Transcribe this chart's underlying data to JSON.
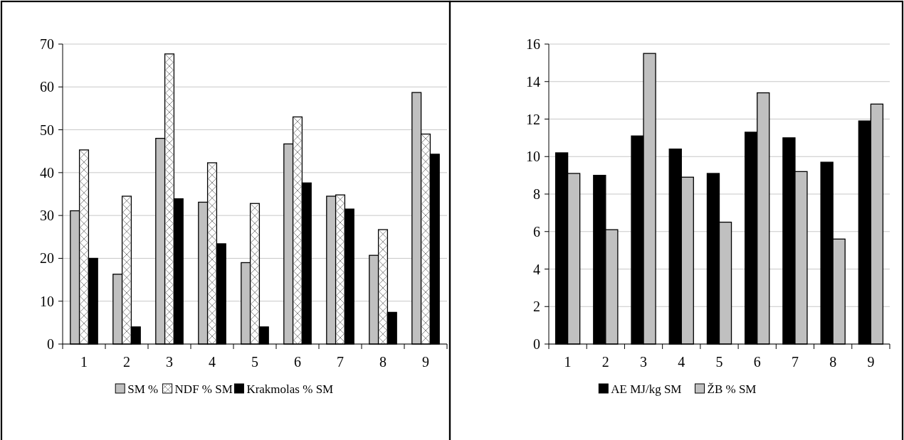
{
  "chart_data": [
    {
      "type": "bar",
      "categories": [
        "1",
        "2",
        "3",
        "4",
        "5",
        "6",
        "7",
        "8",
        "9"
      ],
      "series": [
        {
          "name": "SM %",
          "color": "#c0c0c0",
          "values": [
            31.1,
            16.3,
            48,
            33.1,
            19,
            46.7,
            34.5,
            20.7,
            58.7
          ]
        },
        {
          "name": "NDF % SM",
          "color": "#ffffff",
          "values": [
            45.3,
            34.5,
            67.7,
            42.3,
            32.8,
            53,
            34.8,
            26.7,
            49
          ]
        },
        {
          "name": "Krakmolas % SM",
          "color": "#000000",
          "values": [
            20,
            4,
            33.9,
            23.4,
            4,
            37.6,
            31.5,
            7.4,
            44.3
          ]
        }
      ],
      "ylim": [
        0,
        70
      ],
      "yticks": [
        0,
        10,
        20,
        30,
        40,
        50,
        60,
        70
      ],
      "grid": "y",
      "legend": "bottom"
    },
    {
      "type": "bar",
      "categories": [
        "1",
        "2",
        "3",
        "4",
        "5",
        "6",
        "7",
        "8",
        "9"
      ],
      "series": [
        {
          "name": "AE  MJ/kg SM",
          "color": "#000000",
          "values": [
            10.2,
            9,
            11.1,
            10.4,
            9.1,
            11.3,
            11,
            9.7,
            11.9
          ]
        },
        {
          "name": "ŽB % SM",
          "color": "#c0c0c0",
          "values": [
            9.1,
            6.1,
            15.5,
            8.9,
            6.5,
            13.4,
            9.2,
            5.6,
            12.8
          ]
        }
      ],
      "ylim": [
        0,
        16
      ],
      "yticks": [
        0,
        2,
        4,
        6,
        8,
        10,
        12,
        14,
        16
      ],
      "grid": "y",
      "legend": "bottom"
    }
  ]
}
